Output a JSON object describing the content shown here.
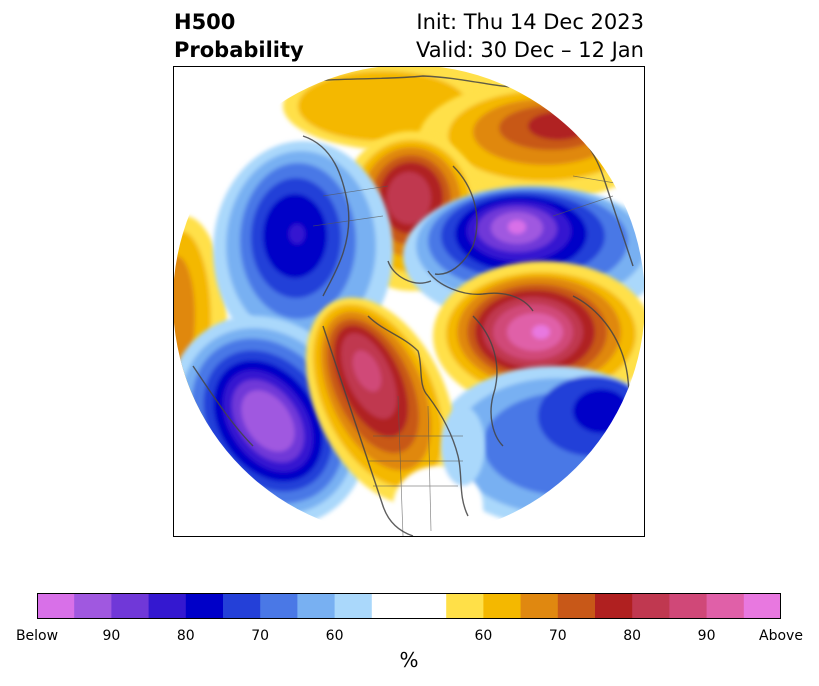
{
  "header": {
    "title_line1": "H500",
    "title_line2": "Probability",
    "init_text": "Init: Thu 14 Dec 2023",
    "valid_text": "Valid: 30 Dec – 12 Jan"
  },
  "map": {
    "projection": "north-polar-stereographic",
    "anomalies": [
      {
        "region": "Greenland / Baffin Bay",
        "sign": "above",
        "peak_level": "80"
      },
      {
        "region": "Northern Europe / North Atlantic",
        "sign": "above",
        "peak_level": "Above"
      },
      {
        "region": "Western Canada / US Rockies",
        "sign": "above",
        "peak_level": "90"
      },
      {
        "region": "Northeast Pacific",
        "sign": "below",
        "peak_level": "Below"
      },
      {
        "region": "Central Siberia / Arctic",
        "sign": "below",
        "peak_level": "Below"
      },
      {
        "region": "Bering / Alaska",
        "sign": "below",
        "peak_level": "70"
      },
      {
        "region": "Eastern North Atlantic",
        "sign": "below",
        "peak_level": "80"
      }
    ]
  },
  "colorbar": {
    "bins": [
      {
        "color": "#d870e8"
      },
      {
        "color": "#a058e0"
      },
      {
        "color": "#7038d8"
      },
      {
        "color": "#3418d0"
      },
      {
        "color": "#0000c8"
      },
      {
        "color": "#2440d8"
      },
      {
        "color": "#4a78e6"
      },
      {
        "color": "#78b0f2"
      },
      {
        "color": "#aad8fb"
      },
      {
        "color": "#ffffff"
      },
      {
        "color": "#ffe048"
      },
      {
        "color": "#f4b800"
      },
      {
        "color": "#e08810"
      },
      {
        "color": "#c85818"
      },
      {
        "color": "#b02020"
      },
      {
        "color": "#c03850"
      },
      {
        "color": "#d04878"
      },
      {
        "color": "#e060a8"
      },
      {
        "color": "#e878e0"
      }
    ],
    "tick_labels": [
      "Below",
      "90",
      "80",
      "70",
      "60",
      "60",
      "70",
      "80",
      "90",
      "Above"
    ],
    "tick_bins": [
      0,
      2,
      4,
      6,
      8,
      12,
      14,
      16,
      18,
      20
    ],
    "unit": "%"
  }
}
